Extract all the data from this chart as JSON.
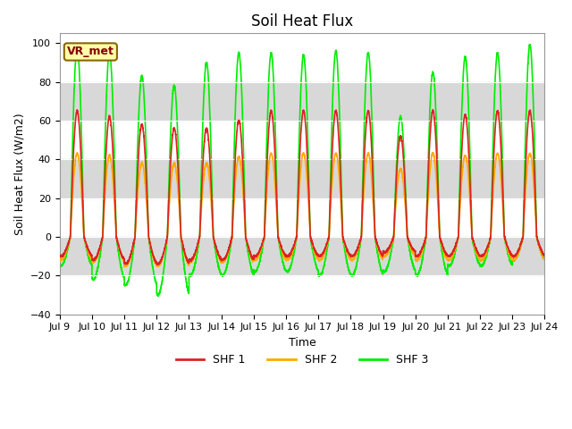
{
  "title": "Soil Heat Flux",
  "xlabel": "Time",
  "ylabel": "Soil Heat Flux (W/m2)",
  "ylim": [
    -40,
    105
  ],
  "yticks": [
    -40,
    -20,
    0,
    20,
    40,
    60,
    80,
    100
  ],
  "x_start_day": 9,
  "x_end_day": 24,
  "x_tick_days": [
    9,
    10,
    11,
    12,
    13,
    14,
    15,
    16,
    17,
    18,
    19,
    20,
    21,
    22,
    23,
    24
  ],
  "shf1_color": "#dd2222",
  "shf2_color": "#ffaa00",
  "shf3_color": "#00ee00",
  "background_color": "#ffffff",
  "plot_bg_color": "#ffffff",
  "band_color": "#d8d8d8",
  "annotation_text": "VR_met",
  "annotation_bg": "#ffffaa",
  "annotation_border": "#886600",
  "legend_labels": [
    "SHF 1",
    "SHF 2",
    "SHF 3"
  ],
  "line_width": 1.2,
  "title_fontsize": 12,
  "label_fontsize": 9,
  "tick_fontsize": 8,
  "shf1_peaks": [
    65,
    62,
    58,
    56,
    56,
    60,
    65,
    65,
    65,
    65,
    52,
    65,
    63,
    65,
    65
  ],
  "shf2_peaks": [
    43,
    42,
    38,
    38,
    38,
    41,
    43,
    43,
    43,
    43,
    35,
    43,
    42,
    43,
    43
  ],
  "shf3_peaks": [
    98,
    95,
    83,
    78,
    90,
    95,
    95,
    94,
    96,
    95,
    62,
    85,
    93,
    95,
    99
  ],
  "shf1_troughs": [
    -10,
    -12,
    -14,
    -14,
    -12,
    -12,
    -10,
    -10,
    -10,
    -10,
    -8,
    -10,
    -10,
    -10,
    -10
  ],
  "shf2_troughs": [
    -12,
    -13,
    -15,
    -15,
    -13,
    -13,
    -12,
    -12,
    -12,
    -12,
    -10,
    -12,
    -12,
    -12,
    -12
  ],
  "shf3_troughs": [
    -15,
    -22,
    -25,
    -30,
    -20,
    -20,
    -18,
    -18,
    -20,
    -20,
    -18,
    -20,
    -15,
    -15,
    -12
  ]
}
